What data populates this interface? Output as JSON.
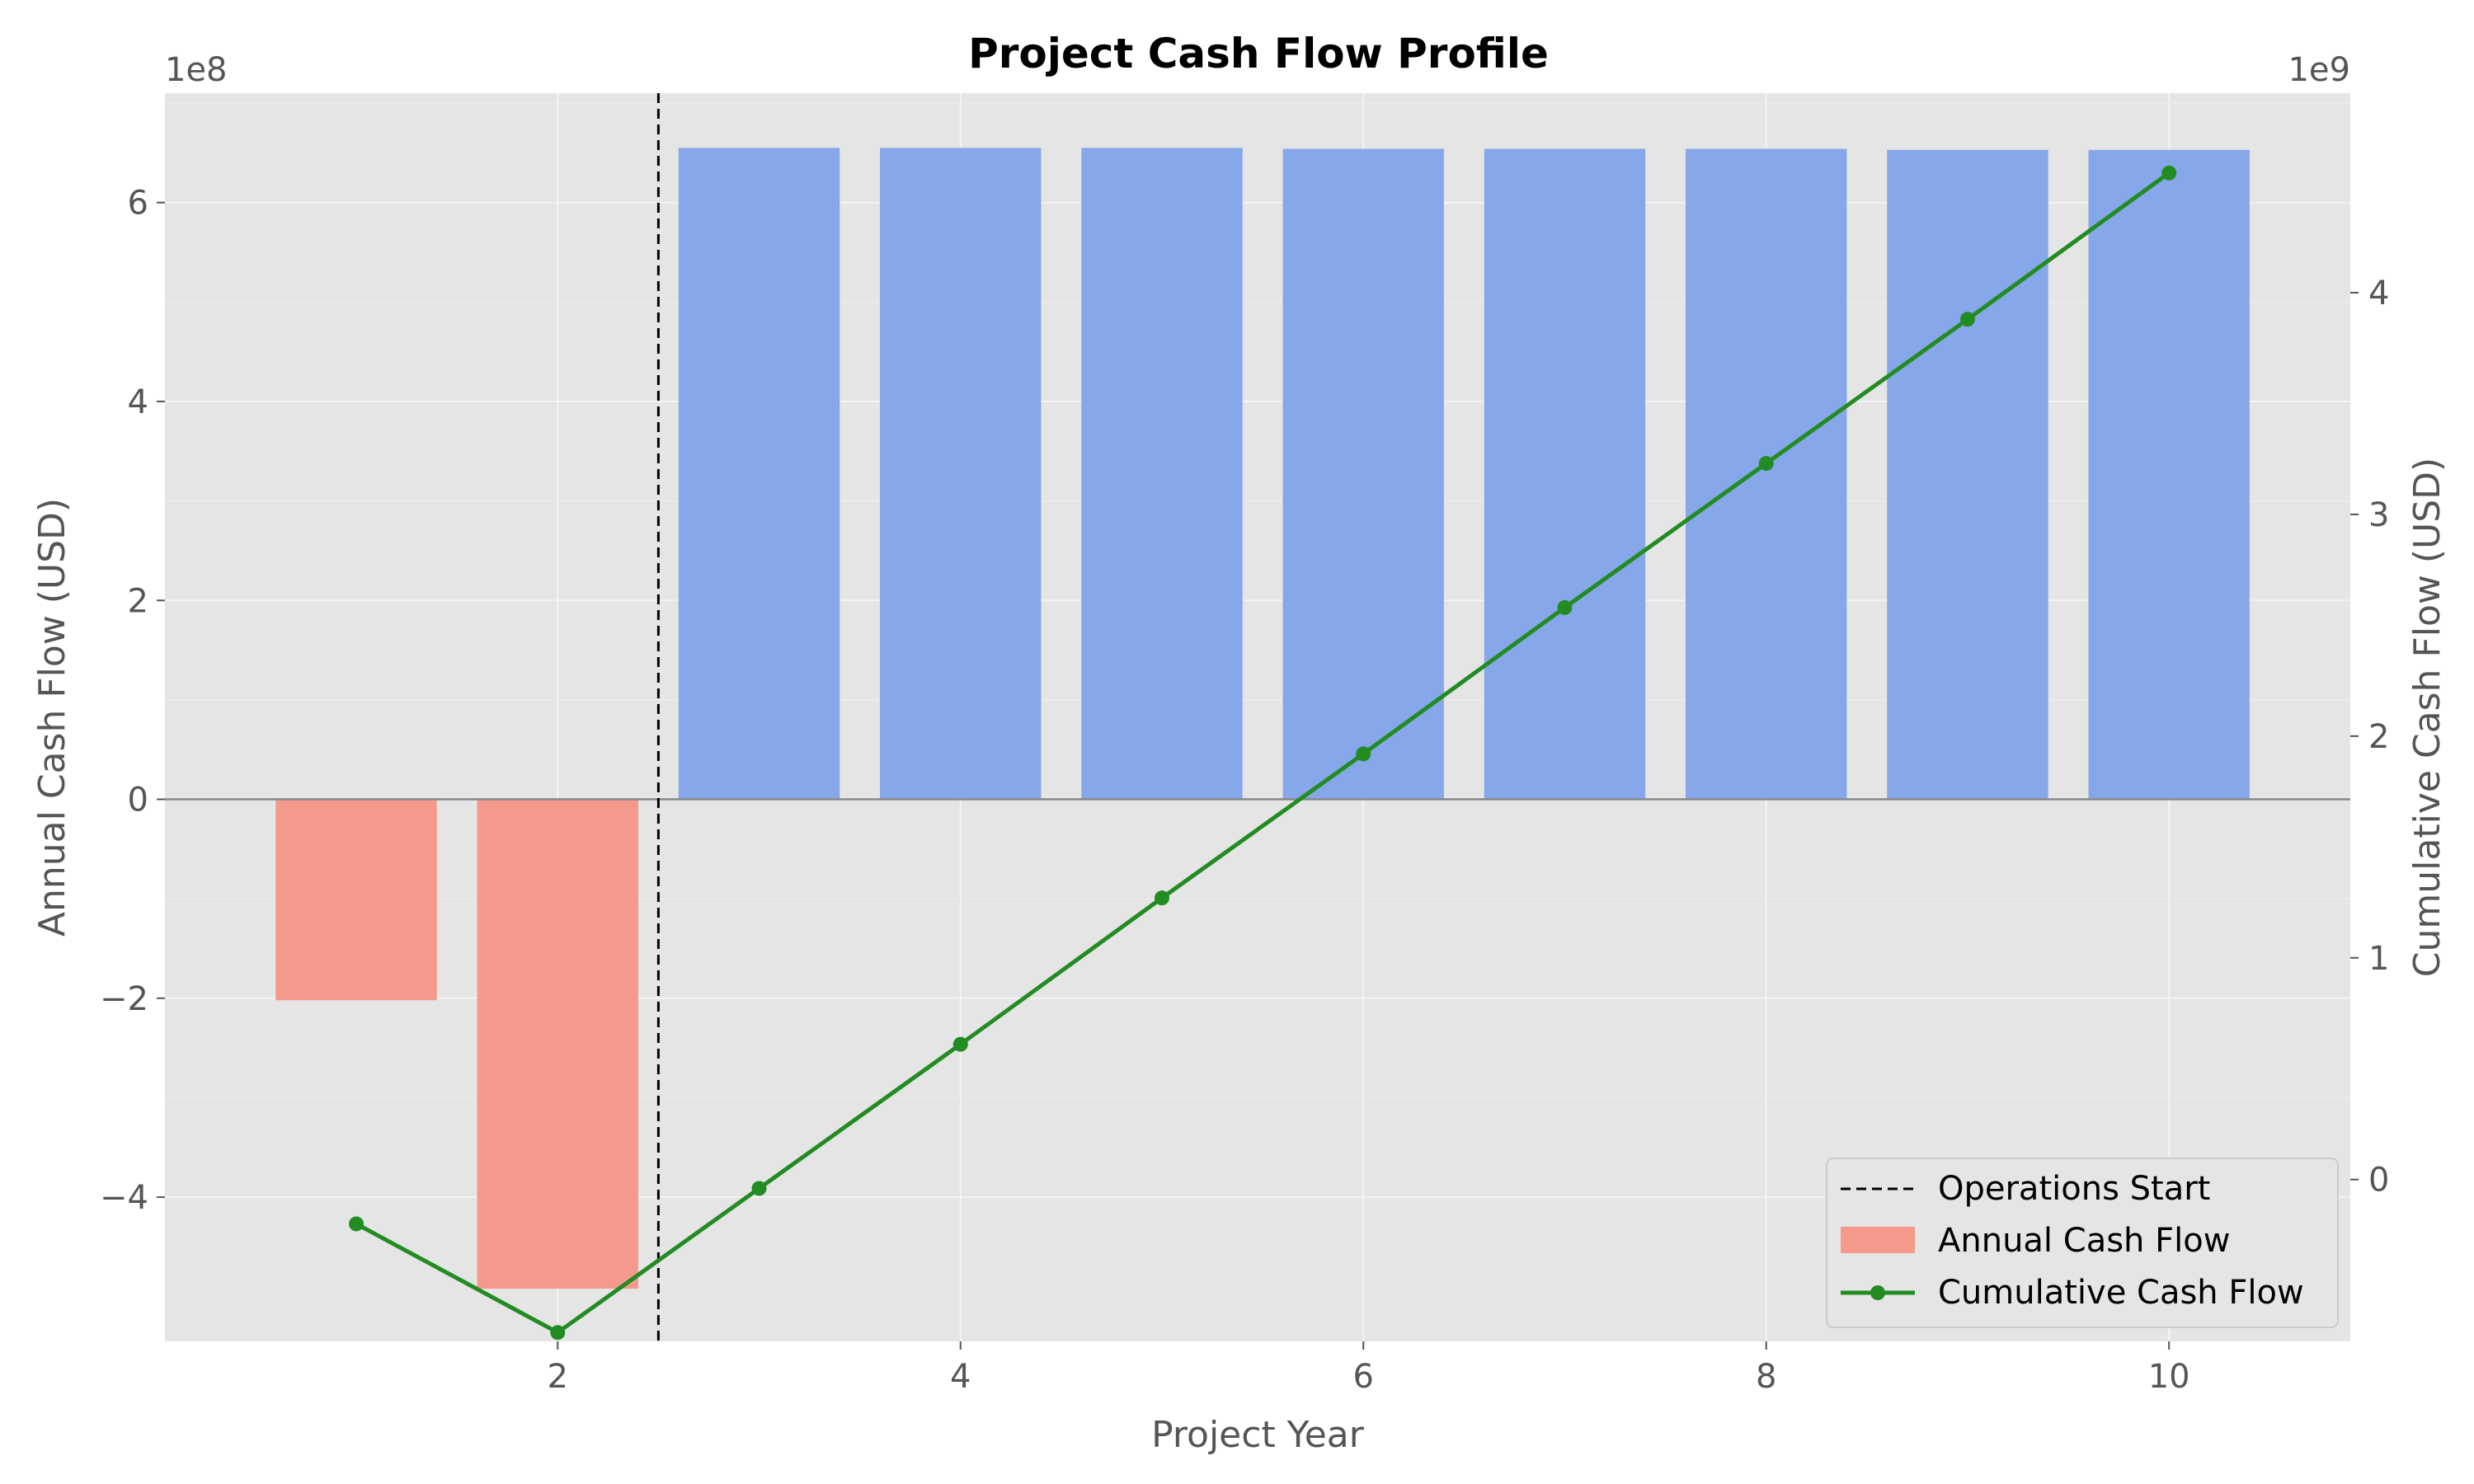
{
  "chart_data": {
    "type": "bar",
    "title": "Project Cash Flow Profile",
    "xlabel": "Project Year",
    "ylabel_left": "Annual Cash Flow (USD)",
    "ylabel_right": "Cumulative Cash Flow (USD)",
    "left_scale_label": "1e8",
    "right_scale_label": "1e9",
    "x": [
      1,
      2,
      3,
      4,
      5,
      6,
      7,
      8,
      9,
      10
    ],
    "x_ticks": [
      2,
      4,
      6,
      8,
      10
    ],
    "xlim": [
      0.05,
      10.9
    ],
    "ylim_left": [
      -5.45,
      7.1
    ],
    "y_ticks_left": [
      -4,
      -2,
      0,
      2,
      4,
      6
    ],
    "ylim_right": [
      -0.73,
      4.9
    ],
    "y_ticks_right": [
      0,
      1,
      2,
      3,
      4
    ],
    "grid": true,
    "legend_position": "lower-right",
    "operations_start_x": 2.5,
    "series": [
      {
        "name": "Annual Cash Flow",
        "axis": "left",
        "kind": "bar",
        "values": [
          -2.02,
          -4.92,
          6.55,
          6.55,
          6.55,
          6.54,
          6.54,
          6.54,
          6.53,
          6.53
        ],
        "color_negative": "#f4998c",
        "color_positive": "#86a8ea"
      },
      {
        "name": "Cumulative Cash Flow",
        "axis": "right",
        "kind": "line",
        "values": [
          -0.2,
          -0.69,
          -0.04,
          0.61,
          1.27,
          1.92,
          2.58,
          3.23,
          3.88,
          4.54
        ],
        "color": "#228b22"
      }
    ],
    "legend": [
      "Operations Start",
      "Annual Cash Flow",
      "Cumulative Cash Flow"
    ]
  }
}
